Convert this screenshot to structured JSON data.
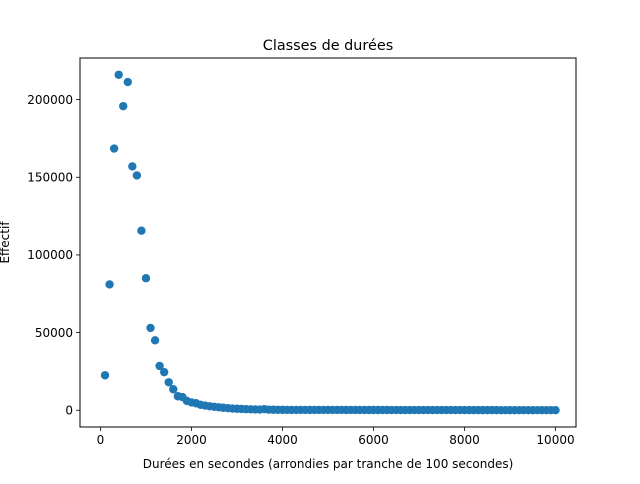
{
  "chart_data": {
    "type": "scatter",
    "title": "Classes de durées",
    "xlabel": "Durées en secondes (arrondies par tranche de 100 secondes)",
    "ylabel": "Effectif",
    "xlim": [
      -450,
      10450
    ],
    "ylim": [
      -10800,
      226800
    ],
    "xticks": [
      0,
      2000,
      4000,
      6000,
      8000,
      10000
    ],
    "yticks": [
      0,
      50000,
      100000,
      150000,
      200000
    ],
    "xtick_labels": [
      "0",
      "2000",
      "4000",
      "6000",
      "8000",
      "10000"
    ],
    "ytick_labels": [
      "0",
      "50000",
      "100000",
      "150000",
      "200000"
    ],
    "grid": false,
    "marker_color": "#1f77b4",
    "points": [
      [
        100,
        22500
      ],
      [
        200,
        81000
      ],
      [
        300,
        168500
      ],
      [
        400,
        216000
      ],
      [
        500,
        195800
      ],
      [
        600,
        211300
      ],
      [
        700,
        157000
      ],
      [
        800,
        151200
      ],
      [
        900,
        115600
      ],
      [
        1000,
        85000
      ],
      [
        1100,
        53000
      ],
      [
        1200,
        45000
      ],
      [
        1300,
        28500
      ],
      [
        1400,
        24500
      ],
      [
        1500,
        18000
      ],
      [
        1600,
        13500
      ],
      [
        1700,
        9000
      ],
      [
        1800,
        8500
      ],
      [
        1900,
        6000
      ],
      [
        2000,
        5000
      ],
      [
        2100,
        4500
      ],
      [
        2200,
        3500
      ],
      [
        2300,
        3000
      ],
      [
        2400,
        2500
      ],
      [
        2500,
        2200
      ],
      [
        2600,
        1900
      ],
      [
        2700,
        1600
      ],
      [
        2800,
        1300
      ],
      [
        2900,
        1100
      ],
      [
        3000,
        950
      ],
      [
        3100,
        800
      ],
      [
        3200,
        700
      ],
      [
        3300,
        600
      ],
      [
        3400,
        520
      ],
      [
        3500,
        450
      ],
      [
        3600,
        700
      ],
      [
        3700,
        350
      ],
      [
        3800,
        300
      ],
      [
        3900,
        260
      ],
      [
        4000,
        230
      ]
    ],
    "tail": {
      "x_start": 4100,
      "x_end": 10000,
      "step": 100,
      "y_start": 210,
      "y_end": 20
    }
  }
}
